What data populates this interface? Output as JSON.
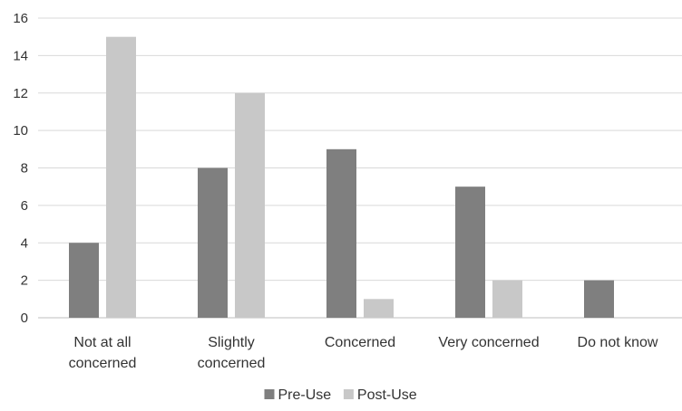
{
  "chart_data": {
    "type": "bar",
    "title": "",
    "xlabel": "",
    "ylabel": "",
    "categories": [
      [
        "Not at all",
        "concerned"
      ],
      [
        "Slightly",
        "concerned"
      ],
      [
        "Concerned"
      ],
      [
        "Very concerned"
      ],
      [
        "Do not know"
      ]
    ],
    "series": [
      {
        "name": "Pre-Use",
        "color": "#7f7f7f",
        "values": [
          4,
          8,
          9,
          7,
          2
        ]
      },
      {
        "name": "Post-Use",
        "color": "#c8c8c8",
        "values": [
          15,
          12,
          1,
          2,
          0
        ]
      }
    ],
    "ylim": [
      0,
      16
    ],
    "yticks": [
      0,
      2,
      4,
      6,
      8,
      10,
      12,
      14,
      16
    ],
    "grid": true,
    "legend_position": "bottom"
  }
}
